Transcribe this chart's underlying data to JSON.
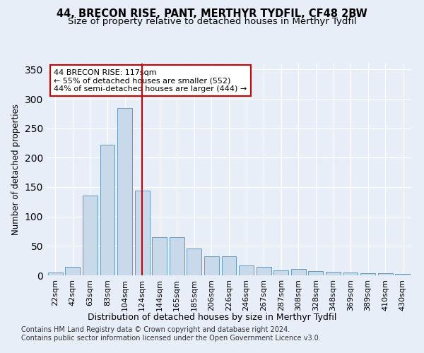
{
  "title": "44, BRECON RISE, PANT, MERTHYR TYDFIL, CF48 2BW",
  "subtitle": "Size of property relative to detached houses in Merthyr Tydfil",
  "xlabel": "Distribution of detached houses by size in Merthyr Tydfil",
  "ylabel": "Number of detached properties",
  "bar_color": "#c8d9ea",
  "bar_edge_color": "#6699bb",
  "categories": [
    "22sqm",
    "42sqm",
    "63sqm",
    "83sqm",
    "104sqm",
    "124sqm",
    "144sqm",
    "165sqm",
    "185sqm",
    "206sqm",
    "226sqm",
    "246sqm",
    "267sqm",
    "287sqm",
    "308sqm",
    "328sqm",
    "348sqm",
    "369sqm",
    "389sqm",
    "410sqm",
    "430sqm"
  ],
  "values": [
    5,
    14,
    136,
    222,
    284,
    144,
    65,
    65,
    46,
    32,
    32,
    17,
    14,
    9,
    11,
    7,
    6,
    5,
    4,
    4,
    3
  ],
  "ylim": [
    0,
    360
  ],
  "yticks": [
    0,
    50,
    100,
    150,
    200,
    250,
    300,
    350
  ],
  "vline_x": 5.0,
  "vline_color": "#cc0000",
  "annotation_text": "44 BRECON RISE: 117sqm\n← 55% of detached houses are smaller (552)\n44% of semi-detached houses are larger (444) →",
  "footer_text": "Contains HM Land Registry data © Crown copyright and database right 2024.\nContains public sector information licensed under the Open Government Licence v3.0.",
  "background_color": "#e8eef8",
  "plot_background": "#e8eef8",
  "grid_color": "#ffffff",
  "title_fontsize": 10.5,
  "subtitle_fontsize": 9.5,
  "xlabel_fontsize": 9,
  "ylabel_fontsize": 8.5,
  "tick_fontsize": 8,
  "footer_fontsize": 7,
  "annot_fontsize": 8
}
